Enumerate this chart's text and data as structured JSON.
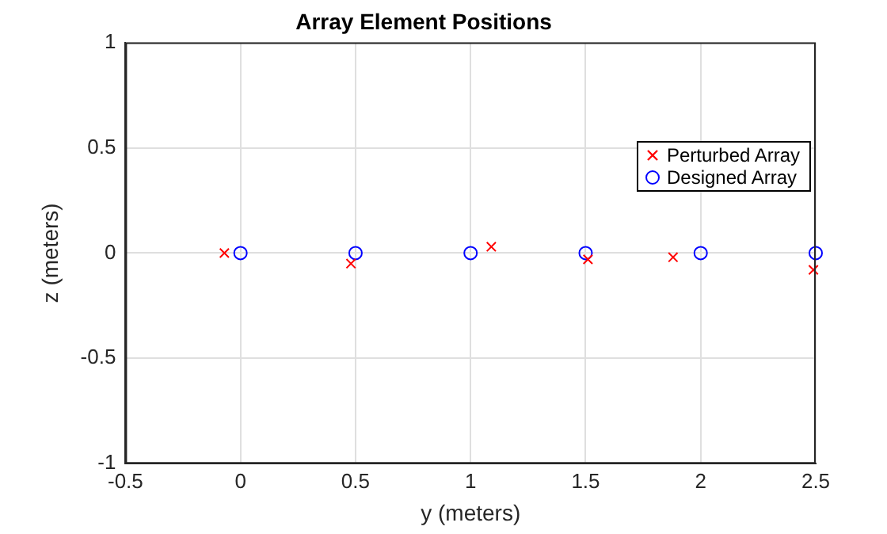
{
  "chart_data": {
    "type": "scatter",
    "title": "Array Element Positions",
    "xlabel": "y (meters)",
    "ylabel": "z (meters)",
    "series": [
      {
        "name": "Perturbed Array",
        "color": "#ff0000",
        "marker": "cross",
        "x": [
          -0.07,
          0.48,
          1.09,
          1.51,
          1.88,
          2.49
        ],
        "values": [
          0.0,
          -0.05,
          0.03,
          -0.03,
          -0.02,
          -0.08
        ]
      },
      {
        "name": "Designed Array",
        "color": "#0000ff",
        "marker": "circle",
        "x": [
          0,
          0.5,
          1,
          1.5,
          2,
          2.5
        ],
        "values": [
          0,
          0,
          0,
          0,
          0,
          0
        ]
      }
    ],
    "xlim": [
      -0.5,
      2.5
    ],
    "xticks": [
      -0.5,
      0,
      0.5,
      1,
      1.5,
      2,
      2.5
    ],
    "ylim": [
      -1,
      1
    ],
    "yticks": [
      -1,
      -0.5,
      0,
      0.5,
      1
    ],
    "grid": true,
    "legend": "top right"
  }
}
